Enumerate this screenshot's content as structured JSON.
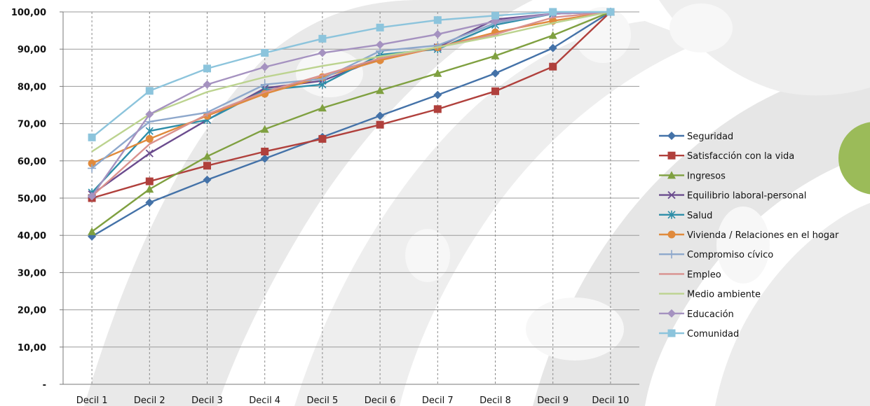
{
  "chart_data": {
    "type": "line",
    "categories": [
      "Decil 1",
      "Decil 2",
      "Decil 3",
      "Decil 4",
      "Decil 5",
      "Decil 6",
      "Decil 7",
      "Decil 8",
      "Decil 9",
      "Decil 10"
    ],
    "y_tick_labels": [
      "-",
      "10,00",
      "20,00",
      "30,00",
      "40,00",
      "50,00",
      "60,00",
      "70,00",
      "80,00",
      "90,00",
      "100,00"
    ],
    "ylim": [
      0,
      100
    ],
    "vertical_gridlines": "dashed",
    "horizontal_gridlines": true,
    "legend_position": "right",
    "series": [
      {
        "name": "Seguridad",
        "color": "#4472a8",
        "marker": "diamond",
        "values": [
          39.7,
          48.8,
          54.9,
          60.6,
          66.4,
          72.1,
          77.7,
          83.5,
          90.3,
          100.0
        ]
      },
      {
        "name": "Satisfacción con la vida",
        "color": "#b0403c",
        "marker": "square",
        "values": [
          50.0,
          54.5,
          58.7,
          62.5,
          65.9,
          69.7,
          73.9,
          78.7,
          85.3,
          100.0
        ]
      },
      {
        "name": "Ingresos",
        "color": "#7fa040",
        "marker": "triangle",
        "values": [
          41.0,
          52.4,
          61.2,
          68.5,
          74.2,
          78.9,
          83.5,
          88.2,
          93.7,
          100.0
        ]
      },
      {
        "name": "Equilibrio laboral-personal",
        "color": "#6b4c8e",
        "marker": "x",
        "values": [
          51.0,
          62.0,
          71.0,
          79.5,
          81.5,
          87.5,
          90.5,
          98.0,
          99.5,
          100.0
        ]
      },
      {
        "name": "Salud",
        "color": "#2e8ea8",
        "marker": "star",
        "values": [
          51.5,
          68.0,
          71.0,
          79.0,
          80.5,
          88.5,
          90.0,
          96.5,
          99.5,
          100.0
        ]
      },
      {
        "name": "Vivienda / Relaciones en el hogar",
        "color": "#e08a3c",
        "marker": "circle",
        "values": [
          59.3,
          65.9,
          72.1,
          78.0,
          82.5,
          87.0,
          90.5,
          94.5,
          97.6,
          100.0
        ]
      },
      {
        "name": "Compromiso cívico",
        "color": "#8ea8cc",
        "marker": "plus",
        "values": [
          58.0,
          70.5,
          73.0,
          80.5,
          82.0,
          89.5,
          91.0,
          97.0,
          99.5,
          100.0
        ]
      },
      {
        "name": "Empleo",
        "color": "#d9918e",
        "marker": "none",
        "values": [
          50.5,
          64.5,
          72.5,
          78.5,
          83.0,
          87.5,
          90.5,
          94.0,
          98.5,
          100.0
        ]
      },
      {
        "name": "Medio ambiente",
        "color": "#bcd38f",
        "marker": "none",
        "values": [
          62.5,
          72.5,
          78.5,
          82.5,
          85.5,
          88.0,
          90.5,
          93.5,
          97.0,
          100.0
        ]
      },
      {
        "name": "Educación",
        "color": "#a592c0",
        "marker": "diamond",
        "values": [
          50.5,
          72.5,
          80.5,
          85.2,
          89.0,
          91.2,
          94.0,
          97.5,
          99.5,
          100.0
        ]
      },
      {
        "name": "Comunidad",
        "color": "#8cc4dc",
        "marker": "square",
        "values": [
          66.3,
          78.8,
          84.8,
          89.0,
          92.8,
          95.8,
          97.8,
          99.0,
          100.0,
          100.0
        ]
      }
    ]
  }
}
